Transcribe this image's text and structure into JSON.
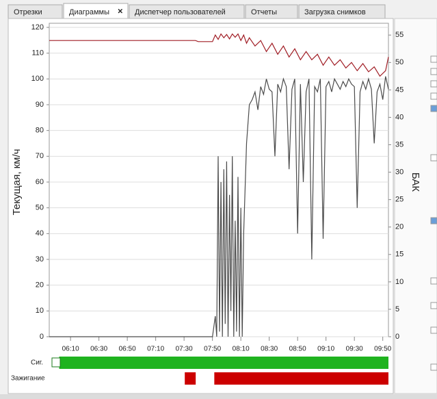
{
  "tabs": [
    "Отрезки",
    "Диаграммы",
    "Диспетчер пользователей",
    "Отчеты",
    "Загрузка снимков"
  ],
  "chart_data": {
    "type": "line",
    "ylabel": "Текущая, км/ч",
    "y2label": "БАК",
    "xlim": [
      355,
      594
    ],
    "ylim": [
      0,
      120
    ],
    "y2lim": [
      0,
      56.4
    ],
    "xticks": [
      {
        "value": 370,
        "label": "06:10"
      },
      {
        "value": 390,
        "label": "06:30"
      },
      {
        "value": 410,
        "label": "06:50"
      },
      {
        "value": 430,
        "label": "07:10"
      },
      {
        "value": 450,
        "label": "07:30"
      },
      {
        "value": 470,
        "label": "07:50"
      },
      {
        "value": 490,
        "label": "08:10"
      },
      {
        "value": 510,
        "label": "08:30"
      },
      {
        "value": 530,
        "label": "08:50"
      },
      {
        "value": 550,
        "label": "09:10"
      },
      {
        "value": 570,
        "label": "09:30"
      },
      {
        "value": 590,
        "label": "09:50"
      }
    ],
    "yticks": [
      0,
      10,
      20,
      30,
      40,
      50,
      60,
      70,
      80,
      90,
      100,
      110,
      120
    ],
    "y2ticks": [
      0,
      5,
      10,
      15,
      20,
      25,
      30,
      35,
      40,
      45,
      50,
      55
    ],
    "grid": true,
    "series": [
      {
        "color": "#4a4a4a",
        "x": [
          355,
          470,
          472,
          473,
          474,
          475,
          476,
          477,
          478,
          479,
          480,
          481,
          482,
          483,
          484,
          485,
          486,
          487,
          488,
          489,
          490,
          491,
          492,
          494,
          496,
          498,
          500,
          502,
          504,
          506,
          508,
          510,
          512,
          514,
          516,
          518,
          520,
          522,
          524,
          526,
          528,
          530,
          532,
          534,
          536,
          538,
          540,
          542,
          544,
          546,
          548,
          550,
          552,
          554,
          556,
          558,
          560,
          562,
          564,
          566,
          568,
          570,
          572,
          574,
          576,
          578,
          580,
          582,
          584,
          586,
          588,
          590,
          592,
          594
        ],
        "values": [
          0,
          0,
          8,
          0,
          70,
          2,
          60,
          0,
          65,
          5,
          68,
          0,
          55,
          10,
          70,
          0,
          45,
          2,
          62,
          0,
          50,
          0,
          40,
          75,
          90,
          92,
          95,
          88,
          97,
          94,
          100,
          96,
          95,
          70,
          98,
          95,
          100,
          97,
          65,
          96,
          100,
          40,
          98,
          60,
          95,
          100,
          30,
          97,
          95,
          100,
          38,
          97,
          99,
          95,
          100,
          98,
          96,
          99,
          97,
          100,
          98,
          97,
          50,
          95,
          99,
          96,
          100,
          96,
          75,
          95,
          98,
          92,
          101,
          96
        ]
      },
      {
        "color": "#a01c24",
        "axis": "y2",
        "x": [
          355,
          458,
          460,
          470,
          472,
          474,
          476,
          478,
          480,
          482,
          484,
          486,
          488,
          490,
          492,
          494,
          496,
          500,
          504,
          508,
          512,
          516,
          520,
          524,
          528,
          532,
          536,
          540,
          544,
          548,
          552,
          556,
          560,
          564,
          568,
          572,
          576,
          580,
          584,
          588,
          592,
          594
        ],
        "values": [
          54,
          54,
          53.8,
          53.8,
          55,
          54.2,
          55.2,
          54.5,
          55.1,
          54.3,
          55.2,
          54.6,
          55.2,
          54,
          55,
          53.5,
          54.5,
          53,
          54,
          52,
          53.5,
          51.5,
          53,
          51,
          52.5,
          50.5,
          52,
          50.5,
          51.5,
          49.5,
          51,
          49.5,
          50.5,
          49,
          50,
          48.5,
          49.8,
          48.3,
          49.2,
          47.5,
          48.5,
          51
        ]
      }
    ],
    "timeline": [
      {
        "label": "Сиг.",
        "color": "#1fb31f",
        "intervals": [
          [
            362,
            594
          ]
        ]
      },
      {
        "label": "Зажигание",
        "color": "#cc0000",
        "intervals": [
          [
            450.5,
            458.2
          ],
          [
            471.3,
            594
          ]
        ]
      }
    ]
  }
}
